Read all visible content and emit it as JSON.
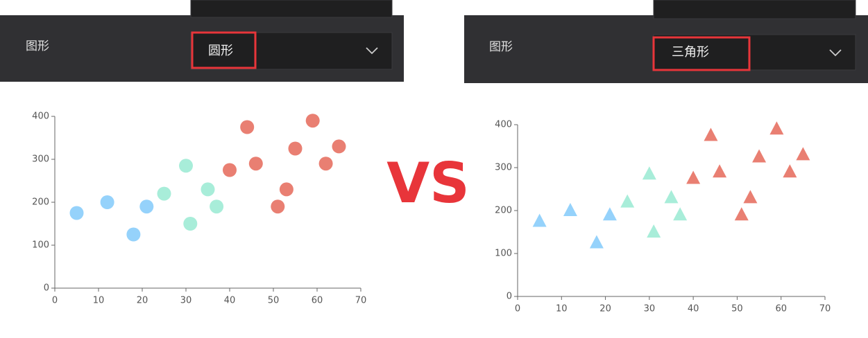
{
  "panels": [
    {
      "label": "图形",
      "value": "圆形"
    },
    {
      "label": "图形",
      "value": "三角形"
    }
  ],
  "vs": "VS",
  "chart_data": [
    {
      "type": "scatter",
      "marker": "circle",
      "xlim": [
        0,
        70
      ],
      "ylim": [
        0,
        400
      ],
      "xticks": [
        0,
        10,
        20,
        30,
        40,
        50,
        60,
        70
      ],
      "yticks": [
        0,
        100,
        200,
        300,
        400
      ],
      "series": [
        {
          "color": "#8fd0fb",
          "x": [
            5,
            12,
            18,
            21
          ],
          "values": [
            175,
            200,
            125,
            190
          ]
        },
        {
          "color": "#a3ecd7",
          "x": [
            25,
            30,
            31,
            35,
            37
          ],
          "values": [
            220,
            285,
            150,
            230,
            190
          ]
        },
        {
          "color": "#e8786a",
          "x": [
            40,
            44,
            46,
            51,
            53,
            55,
            59,
            62,
            65
          ],
          "values": [
            275,
            375,
            290,
            190,
            230,
            325,
            390,
            290,
            330
          ]
        }
      ]
    },
    {
      "type": "scatter",
      "marker": "triangle",
      "xlim": [
        0,
        70
      ],
      "ylim": [
        0,
        400
      ],
      "xticks": [
        0,
        10,
        20,
        30,
        40,
        50,
        60,
        70
      ],
      "yticks": [
        0,
        100,
        200,
        300,
        400
      ],
      "series": [
        {
          "color": "#8fd0fb",
          "x": [
            5,
            12,
            18,
            21
          ],
          "values": [
            175,
            200,
            125,
            190
          ]
        },
        {
          "color": "#a3ecd7",
          "x": [
            25,
            30,
            31,
            35,
            37
          ],
          "values": [
            220,
            285,
            150,
            230,
            190
          ]
        },
        {
          "color": "#e8786a",
          "x": [
            40,
            44,
            46,
            51,
            53,
            55,
            59,
            62,
            65
          ],
          "values": [
            275,
            375,
            290,
            190,
            230,
            325,
            390,
            290,
            330
          ]
        }
      ]
    }
  ]
}
